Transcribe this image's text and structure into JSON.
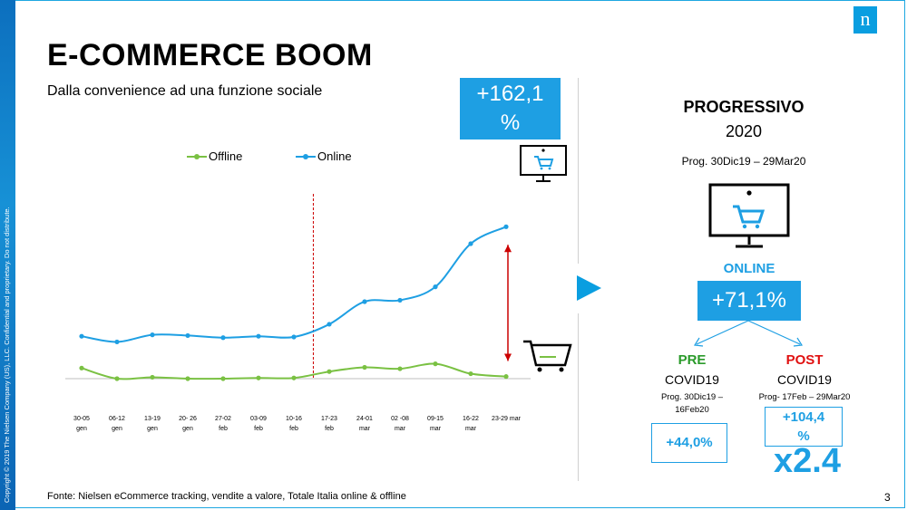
{
  "slide": {
    "title": "E-COMMERCE BOOM",
    "subtitle": "Dalla convenience ad una funzione sociale",
    "copyright": "Copyright © 2019 The Nielsen Company (US), LLC. Confidential and proprietary. Do not distribute.",
    "logo_text": "n",
    "footer": "Fonte: Nielsen eCommerce tracking, vendite a valore, Totale Italia online & offline",
    "page_number": "3"
  },
  "kpi": {
    "main_growth_line1": "+162,1",
    "main_growth_line2": "%"
  },
  "chart_data": {
    "type": "line",
    "categories": [
      "30-05 gen",
      "06-12 gen",
      "13-19 gen",
      "20- 26 gen",
      "27-02 feb",
      "03-09 feb",
      "10-16 feb",
      "17-23 feb",
      "24-01 mar",
      "02 -08 mar",
      "09-15 mar",
      "16-22 mar",
      "23-29 mar"
    ],
    "tick_labels": [
      [
        "30-05",
        "gen"
      ],
      [
        "06-12",
        "gen"
      ],
      [
        "13-19",
        "gen"
      ],
      [
        "20- 26",
        "gen"
      ],
      [
        "27-02",
        "feb"
      ],
      [
        "03-09",
        "feb"
      ],
      [
        "10-16",
        "feb"
      ],
      [
        "17-23",
        "feb"
      ],
      [
        "24-01",
        "mar"
      ],
      [
        "02 -08",
        "mar"
      ],
      [
        "09-15",
        "mar"
      ],
      [
        "16-22",
        "mar"
      ],
      [
        "23-29 mar",
        ""
      ]
    ],
    "series": [
      {
        "name": "Offline",
        "color": "#7ac143",
        "values": [
          15,
          0,
          2,
          0,
          0,
          1,
          1,
          10,
          16,
          14,
          21,
          7,
          3
        ]
      },
      {
        "name": "Online",
        "color": "#1e9fe3",
        "values": [
          60,
          52,
          62,
          61,
          58,
          60,
          59,
          77,
          109,
          111,
          130,
          191,
          215
        ]
      }
    ],
    "ylim": [
      0,
      230
    ],
    "grid": false,
    "legend": "top",
    "event_marker_after_category": "10-16 feb"
  },
  "progressive": {
    "title": "PROGRESSIVO",
    "year": "2020",
    "range": "Prog. 30Dic19 – 29Mar20",
    "online_label": "ONLINE",
    "online_growth": "+71,1%",
    "pre": {
      "title": "PRE",
      "subtitle": "COVID19",
      "range_line1": "Prog. 30Dic19 –",
      "range_line2": "16Feb20",
      "growth": "+44,0%"
    },
    "post": {
      "title": "POST",
      "subtitle": "COVID19",
      "range": "Prog- 17Feb – 29Mar20",
      "growth_line1": "+104,4",
      "growth_line2": "%"
    },
    "multiplier": "x2.4"
  },
  "colors": {
    "accent_blue": "#1e9fe3",
    "offline_green": "#7ac143",
    "pre_green": "#2a9a2a",
    "post_red": "#e01010",
    "arrow_red": "#cc0000"
  }
}
